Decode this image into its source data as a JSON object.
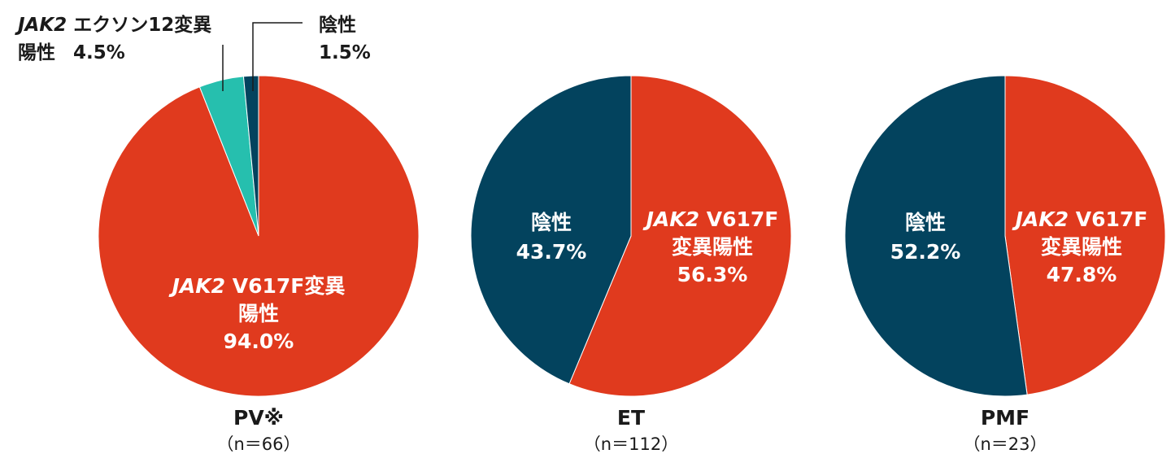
{
  "colors": {
    "jak2_v617f": "#E03A1E",
    "negative": "#03435E",
    "exon12": "#26BFAE",
    "text_dark": "#1a1a1a",
    "text_light": "#ffffff"
  },
  "chart_data": [
    {
      "type": "pie",
      "title": "PV※",
      "n_label": "（n＝66）",
      "slices": [
        {
          "label_italic": "JAK2",
          "label_rest": " V617F変異",
          "label_line2": "陽性",
          "value_text": "94.0%",
          "value": 94.0,
          "color": "#E03A1E"
        },
        {
          "label_italic": "JAK2",
          "label_rest": " エクソン12変異",
          "label_line2": "陽性",
          "value_text": "4.5%",
          "value": 4.5,
          "color": "#26BFAE"
        },
        {
          "label_italic": "",
          "label_rest": "陰性",
          "label_line2": "",
          "value_text": "1.5%",
          "value": 1.5,
          "color": "#03435E"
        }
      ]
    },
    {
      "type": "pie",
      "title": "ET",
      "n_label": "（n＝112）",
      "slices": [
        {
          "label_italic": "JAK2",
          "label_rest": " V617F",
          "label_line2": "変異陽性",
          "value_text": "56.3%",
          "value": 56.3,
          "color": "#E03A1E"
        },
        {
          "label_italic": "",
          "label_rest": "陰性",
          "label_line2": "",
          "value_text": "43.7%",
          "value": 43.7,
          "color": "#03435E"
        }
      ]
    },
    {
      "type": "pie",
      "title": "PMF",
      "n_label": "（n＝23）",
      "slices": [
        {
          "label_italic": "JAK2",
          "label_rest": " V617F",
          "label_line2": "変異陽性",
          "value_text": "47.8%",
          "value": 47.8,
          "color": "#E03A1E"
        },
        {
          "label_italic": "",
          "label_rest": "陰性",
          "label_line2": "",
          "value_text": "52.2%",
          "value": 52.2,
          "color": "#03435E"
        }
      ]
    }
  ]
}
